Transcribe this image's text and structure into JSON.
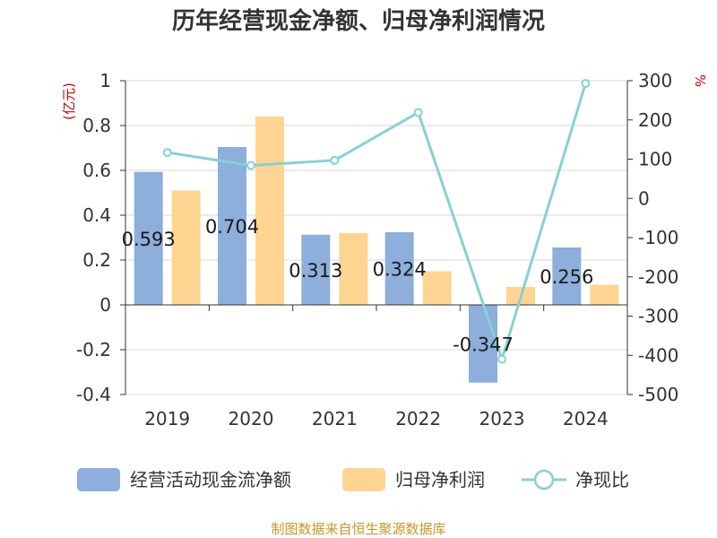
{
  "title": "历年经营现金净额、归母净利润情况",
  "left_unit": "(亿元)",
  "right_unit": "%",
  "source": "制图数据来自恒生聚源数据库",
  "colors": {
    "cash_flow": "#8eaedb",
    "net_profit": "#ffd591",
    "ratio": "#88d0d4",
    "grid": "#d9d9d9",
    "axis": "#333333"
  },
  "chart_data": {
    "type": "bar",
    "categories": [
      "2019",
      "2020",
      "2021",
      "2022",
      "2023",
      "2024"
    ],
    "series": [
      {
        "name": "经营活动现金流净额",
        "type": "bar",
        "axis": "left",
        "values": [
          0.593,
          0.704,
          0.313,
          0.324,
          -0.347,
          0.256
        ],
        "labels": [
          "0.593",
          "0.704",
          "0.313",
          "0.324",
          "-0.347",
          "0.256"
        ]
      },
      {
        "name": "归母净利润",
        "type": "bar",
        "axis": "left",
        "values": [
          0.51,
          0.84,
          0.32,
          0.15,
          0.08,
          0.09
        ]
      },
      {
        "name": "净现比",
        "type": "line",
        "axis": "right",
        "values": [
          117,
          84,
          97,
          219,
          -410,
          293
        ]
      }
    ],
    "left_axis": {
      "ylim": [
        -0.4,
        1
      ],
      "ticks": [
        "1",
        "0.8",
        "0.6",
        "0.4",
        "0.2",
        "0",
        "-0.2",
        "-0.4"
      ]
    },
    "right_axis": {
      "ylim": [
        -500,
        300
      ],
      "ticks": [
        "300",
        "200",
        "100",
        "0",
        "-100",
        "-200",
        "-300",
        "-400",
        "-500"
      ]
    },
    "grid": true,
    "legend_position": "bottom"
  }
}
